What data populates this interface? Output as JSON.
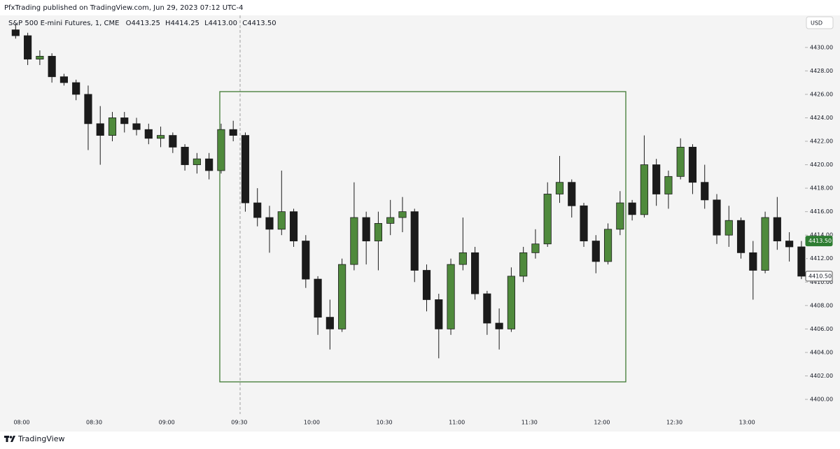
{
  "chart_data": {
    "type": "candlestick",
    "publisher": "PfxTrading published on TradingView.com, Jun 29, 2023 07:12 UTC-4",
    "symbol": "S&P 500 E-mini Futures, 1, CME",
    "ohlc_legend": [
      "O4413.25",
      "H4414.25",
      "L4413.00",
      "C4413.50"
    ],
    "currency": "USD",
    "brand": "TradingView",
    "up_color": "#4f8a3c",
    "down_color": "#1b1b1b",
    "categories": [
      null,
      "08:00",
      null,
      null,
      null,
      null,
      null,
      "08:30",
      null,
      null,
      null,
      null,
      null,
      "09:00",
      null,
      null,
      null,
      null,
      null,
      "09:30",
      null,
      null,
      null,
      null,
      null,
      "10:00",
      null,
      null,
      null,
      null,
      null,
      "10:30",
      null,
      null,
      null,
      null,
      null,
      "11:00",
      null,
      null,
      null,
      null,
      null,
      "11:30",
      null,
      null,
      null,
      null,
      null,
      "12:00",
      null,
      null,
      null,
      null,
      null,
      "12:30",
      null,
      null,
      null,
      null,
      null,
      "13:00",
      null,
      null,
      null,
      null
    ],
    "open": [
      4431.5,
      4431,
      4429,
      4429.25,
      4427.5,
      4427,
      4426,
      4423.5,
      4422.5,
      4424,
      4423.5,
      4423,
      4422.25,
      4422.5,
      4421.5,
      4420,
      4420.5,
      4419.5,
      4423,
      4422.5,
      4416.75,
      4415.5,
      4414.5,
      4416,
      4413.5,
      4410.25,
      4407,
      4406,
      4411.5,
      4415.5,
      4413.5,
      4415,
      4415.5,
      4416,
      4411,
      4408.5,
      4406,
      4411.5,
      4412.5,
      4409,
      4406.5,
      4406,
      4410.5,
      4412.5,
      4413.25,
      4417.5,
      4418.5,
      4416.5,
      4413.5,
      4411.75,
      4414.5,
      4416.75,
      4415.75,
      4420,
      4417.5,
      4419,
      4421.5,
      4418.5,
      4417,
      4414,
      4415.25,
      4412.5,
      4411,
      4415.5,
      4413.5,
      4413
    ],
    "high": [
      4432,
      4431.25,
      4429.75,
      4429.5,
      4427.75,
      4427.25,
      4426.75,
      4425,
      4424.5,
      4424.5,
      4424,
      4423.5,
      4423.25,
      4422.75,
      4421.75,
      4421,
      4421,
      4423.5,
      4423.75,
      4422.75,
      4418,
      4416.5,
      4419.5,
      4416.25,
      4414,
      4410.5,
      4408.5,
      4412,
      4418.5,
      4416,
      4416,
      4417,
      4417.25,
      4416.25,
      4411.5,
      4409,
      4412,
      4415.5,
      4413,
      4409.25,
      4407.75,
      4411.25,
      4413,
      4414.5,
      4418.5,
      4420.75,
      4418.75,
      4416.75,
      4414,
      4415,
      4417.75,
      4417,
      4422.5,
      4420.5,
      4419.5,
      4422.25,
      4421.75,
      4420,
      4417.5,
      4416.5,
      4415.5,
      4413.5,
      4416,
      4417.25,
      4414.25,
      4413.5
    ],
    "low": [
      4430.75,
      4428.5,
      4428.5,
      4427,
      4426.75,
      4425.5,
      4421.25,
      4420,
      4422,
      4422.75,
      4422.5,
      4421.75,
      4421.5,
      4421,
      4419.5,
      4419.25,
      4418.75,
      4419.25,
      4422,
      4416,
      4414.75,
      4412.5,
      4414,
      4413,
      4409.5,
      4405.5,
      4404.25,
      4405.75,
      4411,
      4411.5,
      4411,
      4414,
      4414.25,
      4410,
      4407.5,
      4403.5,
      4405.5,
      4411,
      4408.5,
      4405.5,
      4404.25,
      4405.75,
      4410,
      4412,
      4413,
      4416.75,
      4415.5,
      4413,
      4410.75,
      4411.5,
      4414,
      4415.25,
      4415.5,
      4416.5,
      4416.25,
      4418.75,
      4417.5,
      4416.25,
      4413.25,
      4413,
      4412,
      4408.5,
      4410.75,
      4412.75,
      4411.75,
      4410.25
    ],
    "close": [
      4431,
      4429,
      4429.25,
      4427.5,
      4427,
      4426,
      4423.5,
      4422.5,
      4424,
      4423.5,
      4423,
      4422.25,
      4422.5,
      4421.5,
      4420,
      4420.5,
      4419.5,
      4423,
      4422.5,
      4416.75,
      4415.5,
      4414.5,
      4416,
      4413.5,
      4410.25,
      4407,
      4406,
      4411.5,
      4415.5,
      4413.5,
      4415,
      4415.5,
      4416,
      4411,
      4408.5,
      4406,
      4411.5,
      4412.5,
      4409,
      4406.5,
      4406,
      4410.5,
      4412.5,
      4413.25,
      4417.5,
      4418.5,
      4416.5,
      4413.5,
      4411.75,
      4414.5,
      4416.75,
      4415.75,
      4420,
      4417.5,
      4419,
      4421.5,
      4418.5,
      4417,
      4414,
      4415.25,
      4412.5,
      4411,
      4415.5,
      4413.5,
      4413,
      4410.5
    ],
    "ylim": [
      4398.75,
      4432.85
    ],
    "yticks": [
      {
        "value": 4400,
        "label": "4400.00"
      },
      {
        "value": 4402,
        "label": "4402.00"
      },
      {
        "value": 4404,
        "label": "4404.00"
      },
      {
        "value": 4406,
        "label": "4406.00"
      },
      {
        "value": 4408,
        "label": "4408.00"
      },
      {
        "value": 4410,
        "label": "4410.00"
      },
      {
        "value": 4412,
        "label": "4412.00"
      },
      {
        "value": 4414,
        "label": "4414.00"
      },
      {
        "value": 4416,
        "label": "4416.00"
      },
      {
        "value": 4418,
        "label": "4418.00"
      },
      {
        "value": 4420,
        "label": "4420.00"
      },
      {
        "value": 4422,
        "label": "4422.00"
      },
      {
        "value": 4424,
        "label": "4424.00"
      },
      {
        "value": 4426,
        "label": "4426.00"
      },
      {
        "value": 4428,
        "label": "4428.00"
      },
      {
        "value": 4430,
        "label": "4430.00"
      }
    ],
    "price_labels": [
      {
        "value": 4413.5,
        "label": "4413.50",
        "color": "#2e7d32"
      },
      {
        "value": 4410.5,
        "label": "4410.50",
        "color": "#ffffff"
      }
    ],
    "grid": false
  }
}
